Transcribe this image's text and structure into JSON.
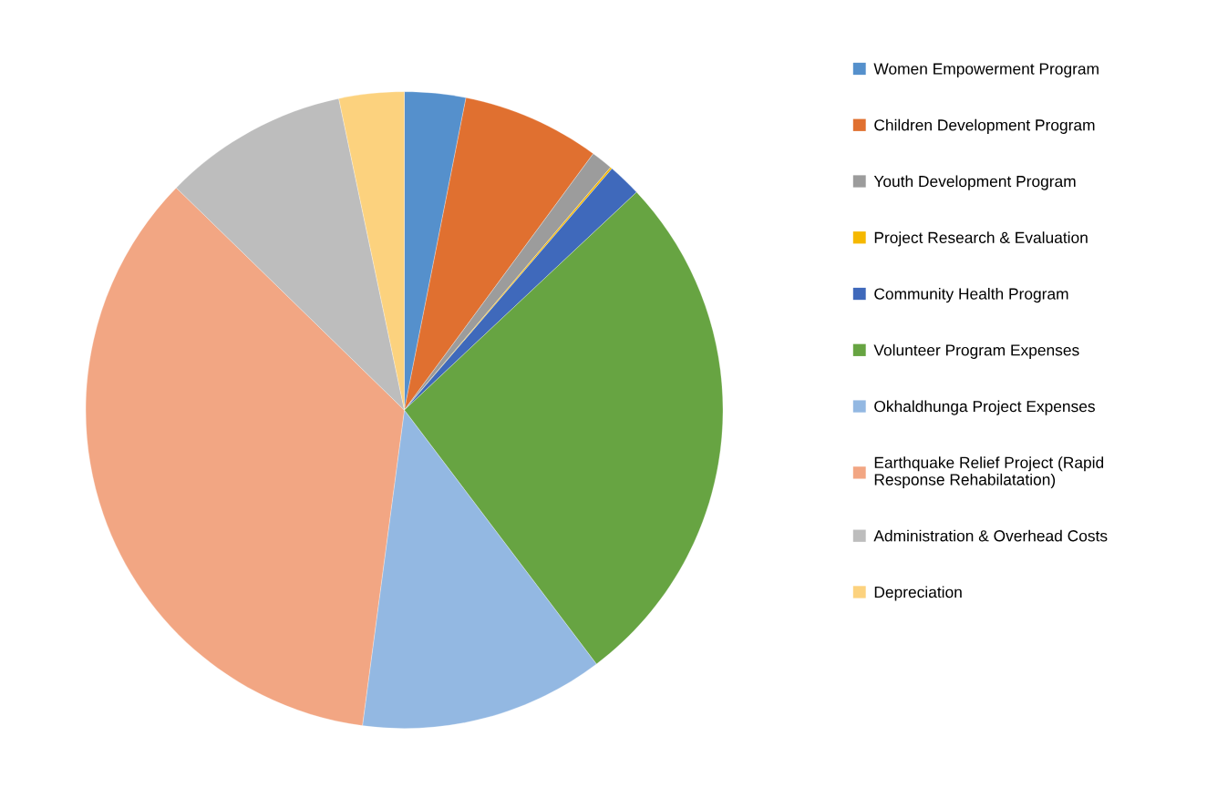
{
  "chart_data": {
    "type": "pie",
    "categories": [
      "Women Empowerment Program",
      "Children Development Program",
      "Youth Development Program",
      "Project Research & Evaluation",
      "Community Health Program",
      "Volunteer Program Expenses",
      "Okhaldhunga Project Expenses",
      "Earthquake Relief Project (Rapid\nResponse Rehabilatation)",
      "Administration & Overhead Costs",
      "Depreciation"
    ],
    "values": [
      3.1,
      7.0,
      1.1,
      0.1,
      1.7,
      26.7,
      12.4,
      35.2,
      9.4,
      3.3
    ],
    "colors": [
      "#5590cc",
      "#e07030",
      "#9c9c9c",
      "#f5b800",
      "#3f69bb",
      "#67a442",
      "#93b8e2",
      "#f2a683",
      "#bdbdbd",
      "#fcd27e"
    ],
    "legend": "right"
  }
}
